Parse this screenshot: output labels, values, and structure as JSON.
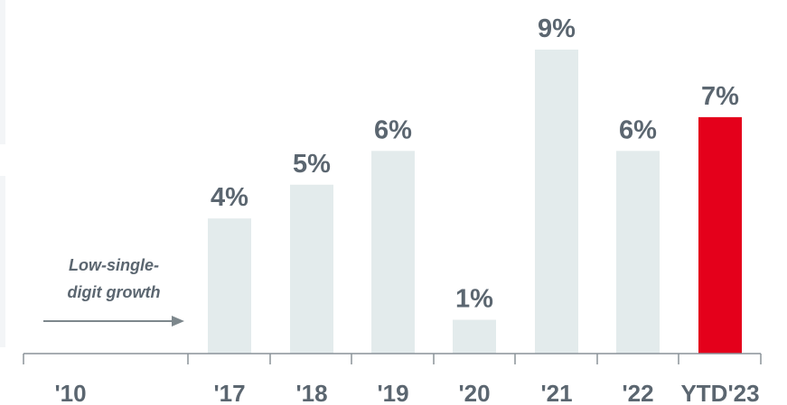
{
  "chart_data": {
    "type": "bar",
    "categories": [
      "'10",
      "'17",
      "'18",
      "'19",
      "'20",
      "'21",
      "'22",
      "YTD'23"
    ],
    "values": [
      null,
      4,
      5,
      6,
      1,
      9,
      6,
      7
    ],
    "data_labels": [
      "",
      "4%",
      "5%",
      "6%",
      "1%",
      "9%",
      "6%",
      "7%"
    ],
    "unit": "%",
    "ylim": [
      0,
      9.4
    ],
    "grid": false,
    "highlight_category": "YTD'23",
    "annotation": {
      "line1": "Low-single-",
      "line2": "digit growth"
    },
    "colors": {
      "bar": "#e3ebec",
      "highlight": "#e4001b",
      "text": "#5b6670",
      "axis": "#8a9299",
      "arrow": "#7d878c"
    }
  }
}
